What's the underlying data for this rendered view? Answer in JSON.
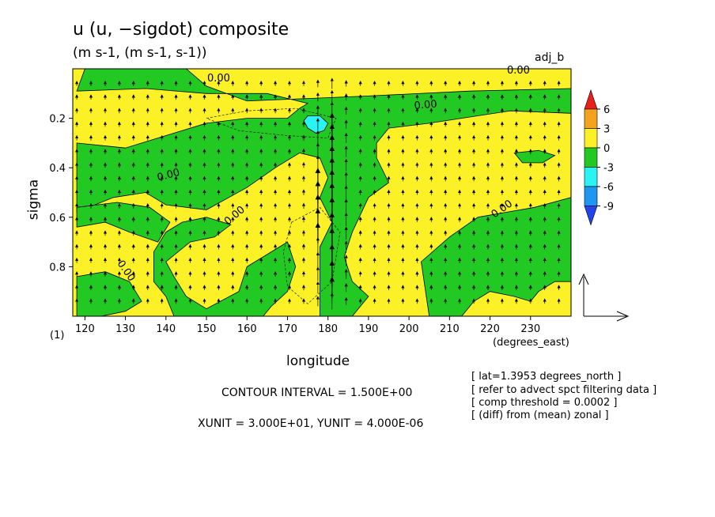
{
  "chart_data": {
    "type": "heatmap",
    "title": "u (u, −sigdot) composite",
    "units": "(m s-1, (m s-1, s-1))",
    "tag": "adj_b",
    "xlabel": "longitude",
    "xunits": "(degrees_east)",
    "ylabel": "sigma",
    "panel_label": "(1)",
    "xlim": [
      117,
      240
    ],
    "ylim": [
      0.0,
      1.0
    ],
    "x_ticks": [
      120,
      130,
      140,
      150,
      160,
      170,
      180,
      190,
      200,
      210,
      220,
      230
    ],
    "y_ticks": [
      0.2,
      0.4,
      0.6,
      0.8
    ],
    "y_tick_labels": [
      "0.2",
      "0.4",
      "0.6",
      "0.8"
    ],
    "colorbar": {
      "levels": [
        "6",
        "3",
        "0",
        "-3",
        "-6",
        "-9"
      ],
      "colors": [
        "#e8211a",
        "#f5a21c",
        "#fcf026",
        "#22c922",
        "#2af3f3",
        "#1f96f0",
        "#2244e8"
      ]
    },
    "contour_labels": [
      "0.00",
      "0.00",
      "0.00",
      "0.00",
      "0.00",
      "0.00",
      "0.00"
    ],
    "contour_interval": "CONTOUR INTERVAL = 1.500E+00",
    "vector_units": "XUNIT = 3.000E+01, YUNIT = 4.000E-06",
    "info": [
      "[ lat=1.3953 degrees_north ]",
      "[ refer to advect spct filtering data ]",
      "[ comp threshold = 0.0002 ]",
      "[ (diff) from (mean) zonal ]"
    ],
    "regions": [
      {
        "value": "-3 to 0",
        "color": "#22c922",
        "polygon": [
          [
            120,
            0
          ],
          [
            145,
            0
          ],
          [
            150,
            0.07
          ],
          [
            160,
            0.13
          ],
          [
            175,
            0.12
          ],
          [
            190,
            0.11
          ],
          [
            215,
            0.09
          ],
          [
            240,
            0.08
          ],
          [
            240,
            0.18
          ],
          [
            225,
            0.17
          ],
          [
            205,
            0.22
          ],
          [
            195,
            0.24
          ],
          [
            192,
            0.3
          ],
          [
            192,
            0.36
          ],
          [
            195,
            0.46
          ],
          [
            190,
            0.52
          ],
          [
            186,
            0.66
          ],
          [
            184,
            0.76
          ],
          [
            186,
            0.86
          ],
          [
            190,
            0.92
          ],
          [
            186,
            1.0
          ],
          [
            178,
            1.0
          ],
          [
            178,
            0.72
          ],
          [
            181,
            0.62
          ],
          [
            178,
            0.52
          ],
          [
            180,
            0.44
          ],
          [
            178,
            0.36
          ],
          [
            173,
            0.34
          ],
          [
            167,
            0.4
          ],
          [
            160,
            0.48
          ],
          [
            150,
            0.57
          ],
          [
            140,
            0.55
          ],
          [
            135,
            0.5
          ],
          [
            127,
            0.52
          ],
          [
            118,
            0.58
          ],
          [
            118,
            0.3
          ],
          [
            130,
            0.32
          ],
          [
            138,
            0.28
          ],
          [
            150,
            0.22
          ],
          [
            160,
            0.2
          ],
          [
            170,
            0.2
          ],
          [
            173,
            0.16
          ],
          [
            175,
            0.14
          ],
          [
            165,
            0.1
          ],
          [
            150,
            0.1
          ],
          [
            135,
            0.08
          ],
          [
            118,
            0.09
          ]
        ]
      },
      {
        "value": "-3 to 0",
        "color": "#22c922",
        "polygon": [
          [
            118,
            0.56
          ],
          [
            128,
            0.54
          ],
          [
            136,
            0.56
          ],
          [
            141,
            0.62
          ],
          [
            138,
            0.7
          ],
          [
            131,
            0.66
          ],
          [
            125,
            0.62
          ],
          [
            118,
            0.64
          ]
        ]
      },
      {
        "value": "-3 to 0",
        "color": "#22c922",
        "polygon": [
          [
            144,
            0.62
          ],
          [
            150,
            0.6
          ],
          [
            156,
            0.63
          ],
          [
            152,
            0.68
          ],
          [
            146,
            0.7
          ],
          [
            140,
            0.78
          ],
          [
            142,
            0.84
          ],
          [
            145,
            0.92
          ],
          [
            150,
            0.97
          ],
          [
            158,
            0.9
          ],
          [
            160,
            0.8
          ],
          [
            166,
            0.74
          ],
          [
            170,
            0.7
          ],
          [
            172,
            0.8
          ],
          [
            170,
            0.9
          ],
          [
            166,
            0.96
          ],
          [
            164,
            1.0
          ],
          [
            142,
            1.0
          ],
          [
            140,
            0.92
          ],
          [
            137,
            0.86
          ],
          [
            137,
            0.74
          ],
          [
            140,
            0.66
          ]
        ]
      },
      {
        "value": "-3 to 0",
        "color": "#22c922",
        "polygon": [
          [
            118,
            0.84
          ],
          [
            125,
            0.82
          ],
          [
            131,
            0.86
          ],
          [
            134,
            0.94
          ],
          [
            130,
            0.98
          ],
          [
            124,
            1.0
          ],
          [
            118,
            1.0
          ]
        ]
      },
      {
        "value": "-3 to 0",
        "color": "#22c922",
        "polygon": [
          [
            205,
            1.0
          ],
          [
            203,
            0.78
          ],
          [
            210,
            0.68
          ],
          [
            217,
            0.6
          ],
          [
            224,
            0.58
          ],
          [
            231,
            0.56
          ],
          [
            240,
            0.52
          ],
          [
            240,
            0.86
          ],
          [
            236,
            0.86
          ],
          [
            232,
            0.9
          ],
          [
            230,
            0.94
          ],
          [
            226,
            0.92
          ],
          [
            220,
            0.9
          ],
          [
            216,
            0.94
          ],
          [
            213,
            1.0
          ]
        ]
      },
      {
        "value": "-3 to 0",
        "color": "#22c922",
        "polygon": [
          [
            226,
            0.34
          ],
          [
            232,
            0.33
          ],
          [
            236,
            0.35
          ],
          [
            233,
            0.38
          ],
          [
            228,
            0.38
          ]
        ]
      },
      {
        "value": "-6 to -3",
        "color": "#2af3f3",
        "polygon": [
          [
            175,
            0.19
          ],
          [
            178,
            0.19
          ],
          [
            180,
            0.22
          ],
          [
            179,
            0.25
          ],
          [
            177,
            0.26
          ],
          [
            175,
            0.24
          ],
          [
            174,
            0.21
          ]
        ]
      }
    ]
  }
}
